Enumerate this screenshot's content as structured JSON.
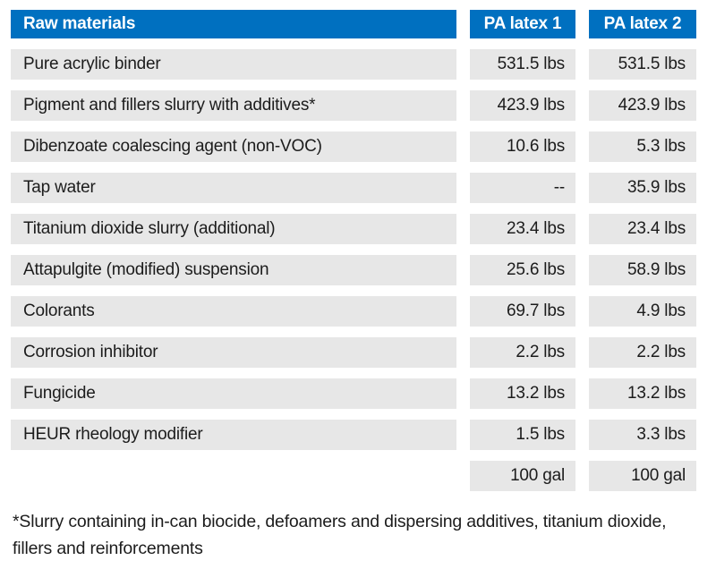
{
  "colors": {
    "header_bg": "#0070C0",
    "header_text": "#FFFFFF",
    "row_bg": "#E7E7E7",
    "body_text": "#1C1C1C"
  },
  "table": {
    "header": {
      "materials_label": "Raw materials",
      "latex1_label": "PA latex 1",
      "latex2_label": "PA latex 2"
    },
    "rows": [
      {
        "material": "Pure acrylic binder",
        "latex1": "531.5 lbs",
        "latex2": "531.5 lbs"
      },
      {
        "material": "Pigment and fillers slurry with additives*",
        "latex1": "423.9 lbs",
        "latex2": "423.9 lbs"
      },
      {
        "material": "Dibenzoate coalescing agent (non-VOC)",
        "latex1": "10.6 lbs",
        "latex2": "5.3 lbs"
      },
      {
        "material": "Tap water",
        "latex1": "--",
        "latex2": "35.9 lbs"
      },
      {
        "material": "Titanium dioxide slurry (additional)",
        "latex1": "23.4 lbs",
        "latex2": "23.4 lbs"
      },
      {
        "material": "Attapulgite (modified) suspension",
        "latex1": "25.6 lbs",
        "latex2": "58.9 lbs"
      },
      {
        "material": "Colorants",
        "latex1": "69.7 lbs",
        "latex2": "4.9 lbs"
      },
      {
        "material": "Corrosion inhibitor",
        "latex1": "2.2 lbs",
        "latex2": "2.2 lbs"
      },
      {
        "material": "Fungicide",
        "latex1": "13.2 lbs",
        "latex2": "13.2 lbs"
      },
      {
        "material": "HEUR rheology modifier",
        "latex1": "1.5 lbs",
        "latex2": "3.3 lbs"
      }
    ],
    "total_row": {
      "latex1": "100 gal",
      "latex2": "100 gal"
    }
  },
  "footnote": "*Slurry containing in-can biocide, defoamers and dispersing additives, titanium dioxide, fillers and reinforcements"
}
